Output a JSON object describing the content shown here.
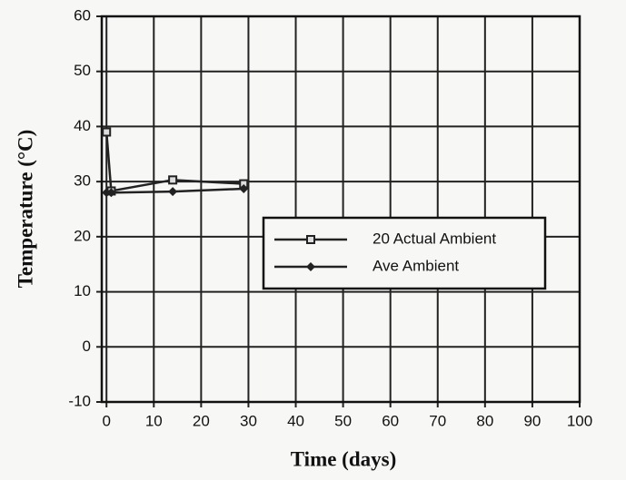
{
  "chart_data": {
    "type": "line",
    "xlabel": "Time (days)",
    "ylabel": "Temperature (°C)",
    "xlim": [
      -1,
      100
    ],
    "xticks": [
      0,
      10,
      20,
      30,
      40,
      50,
      60,
      70,
      80,
      90,
      100
    ],
    "ylim": [
      -10,
      60
    ],
    "yticks": [
      -10,
      0,
      10,
      20,
      30,
      40,
      50,
      60
    ],
    "grid": true,
    "series": [
      {
        "name": "20 Actual Ambient",
        "color": "#222222",
        "marker": "square",
        "x": [
          0,
          1,
          14,
          29
        ],
        "values": [
          39,
          28.3,
          30.3,
          29.6
        ]
      },
      {
        "name": "Ave Ambient",
        "color": "#222222",
        "marker": "diamond",
        "x": [
          0,
          1,
          14,
          29
        ],
        "values": [
          28,
          28,
          28.2,
          28.7
        ]
      }
    ]
  }
}
